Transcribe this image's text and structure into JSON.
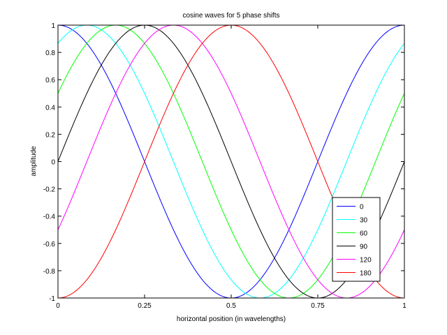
{
  "chart_data": {
    "type": "line",
    "title": "cosine waves for 5 phase shifts",
    "xlabel": "horizontal position (in wavelengths)",
    "ylabel": "amplitude",
    "xlim": [
      0,
      1
    ],
    "ylim": [
      -1,
      1
    ],
    "xticks": [
      0,
      0.25,
      0.5,
      0.75,
      1
    ],
    "xtick_labels": [
      "0",
      "0.25",
      "0.5",
      "0.75",
      "1"
    ],
    "yticks": [
      -1,
      -0.8,
      -0.6,
      -0.4,
      -0.2,
      0,
      0.2,
      0.4,
      0.6,
      0.8,
      1
    ],
    "ytick_labels": [
      "-1",
      "-0.8",
      "-0.6",
      "-0.4",
      "-0.2",
      "0",
      "0.2",
      "0.4",
      "0.6",
      "0.8",
      "1"
    ],
    "grid": false,
    "legend_position": "bottom-right",
    "function": "y = cos(2*pi*(x - phase/360))",
    "x": [
      0,
      0.125,
      0.25,
      0.375,
      0.5,
      0.625,
      0.75,
      0.875,
      1
    ],
    "series": [
      {
        "name": "0",
        "phase_deg": 0,
        "color": "#0000ff",
        "values": [
          1,
          0.707,
          0,
          -0.707,
          -1,
          -0.707,
          0,
          0.707,
          1
        ]
      },
      {
        "name": "30",
        "phase_deg": 30,
        "color": "#00ffff",
        "values": [
          0.866,
          0.966,
          0.5,
          -0.259,
          -0.866,
          -0.966,
          -0.5,
          0.259,
          0.866
        ]
      },
      {
        "name": "60",
        "phase_deg": 60,
        "color": "#00ff00",
        "values": [
          0.5,
          0.966,
          0.866,
          0.259,
          -0.5,
          -0.966,
          -0.866,
          -0.259,
          0.5
        ]
      },
      {
        "name": "90",
        "phase_deg": 90,
        "color": "#000000",
        "values": [
          0,
          0.707,
          1,
          0.707,
          0,
          -0.707,
          -1,
          -0.707,
          0
        ]
      },
      {
        "name": "120",
        "phase_deg": 120,
        "color": "#ff00ff",
        "values": [
          -0.5,
          0.259,
          0.866,
          0.966,
          0.5,
          -0.259,
          -0.866,
          -0.966,
          -0.5
        ]
      },
      {
        "name": "180",
        "phase_deg": 180,
        "color": "#ff0000",
        "values": [
          -1,
          -0.707,
          0,
          0.707,
          1,
          0.707,
          0,
          -0.707,
          -1
        ]
      }
    ]
  }
}
